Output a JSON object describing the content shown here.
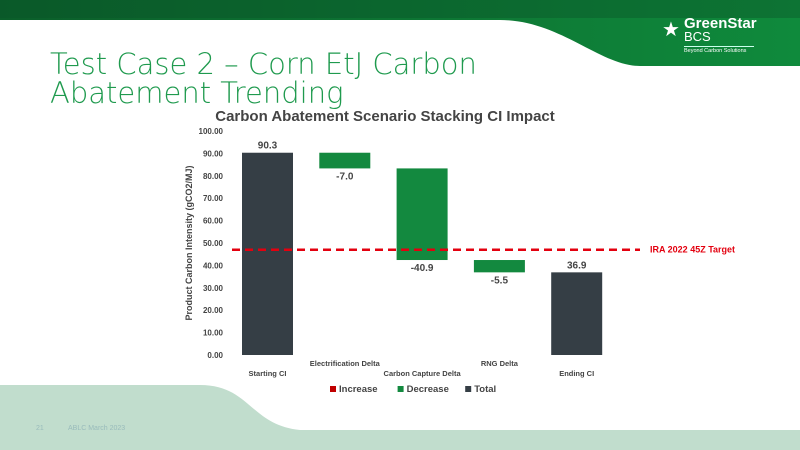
{
  "slide": {
    "title_line1": "Test Case 2 – Corn EtJ Carbon",
    "title_line2": "Abatement Trending",
    "page_number": "21",
    "footer_text": "ABLC March 2023"
  },
  "logo": {
    "name_line1": "GreenStar",
    "name_line2": "BCS",
    "tagline": "Beyond Carbon Solutions"
  },
  "colors": {
    "brand_green": "#0f8a3c",
    "increase": "#c00000",
    "decrease": "#13893f",
    "total": "#353e45",
    "target": "#e3000f"
  },
  "chart_data": {
    "type": "waterfall",
    "title": "Carbon Abatement Scenario Stacking CI Impact",
    "ylabel": "Product Carbon Intensity (gCO2/MJ)",
    "ylim": [
      0,
      100
    ],
    "yticks": [
      "0.00",
      "10.00",
      "20.00",
      "30.00",
      "40.00",
      "50.00",
      "60.00",
      "70.00",
      "80.00",
      "90.00",
      "100.00"
    ],
    "categories": [
      "Starting CI",
      "Electrification Delta",
      "Carbon Capture Delta",
      "RNG Delta",
      "Ending CI"
    ],
    "bars": [
      {
        "kind": "total",
        "start": 0,
        "end": 90.3,
        "label": "90.3"
      },
      {
        "kind": "decrease",
        "start": 90.3,
        "end": 83.3,
        "label": "-7.0"
      },
      {
        "kind": "decrease",
        "start": 83.3,
        "end": 42.4,
        "label": "-40.9"
      },
      {
        "kind": "decrease",
        "start": 42.4,
        "end": 36.9,
        "label": "-5.5"
      },
      {
        "kind": "total",
        "start": 0,
        "end": 36.9,
        "label": "36.9"
      }
    ],
    "target": {
      "value": 47,
      "label": "IRA 2022 45Z Target"
    },
    "legend": [
      "Increase",
      "Decrease",
      "Total"
    ],
    "legend_position": "bottom"
  }
}
